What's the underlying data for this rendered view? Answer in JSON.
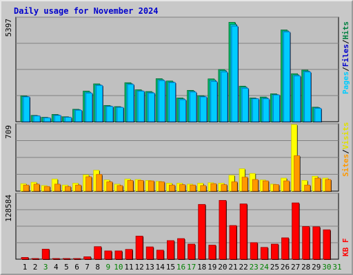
{
  "title": "Daily usage for November 2024",
  "colors": {
    "pages": "#00ccff",
    "pages_dark": "#0066cc",
    "files": "#00cccc",
    "files_dark": "#006666",
    "hits": "#00cc66",
    "hits_dark": "#006633",
    "visits": "#ffff00",
    "visits_dark": "#cccc00",
    "sites": "#ff9900",
    "sites_dark": "#cc6600",
    "kbytes": "#ff0000",
    "kbytes_dark": "#990000",
    "panel_bg": "#c0c0c0",
    "grid": "#808080"
  },
  "chart_data": [
    {
      "type": "bar",
      "title": "Daily usage for November 2024",
      "ymax_label": "5397",
      "ylim": [
        0,
        5397
      ],
      "legend": [
        "Pages",
        "Files",
        "Hits"
      ],
      "legend_separator": "/",
      "categories": [
        "1",
        "2",
        "3",
        "4",
        "5",
        "6",
        "7",
        "8",
        "9",
        "10",
        "11",
        "12",
        "13",
        "14",
        "15",
        "16",
        "17",
        "18",
        "19",
        "20",
        "21",
        "22",
        "23",
        "24",
        "25",
        "26",
        "27",
        "28",
        "29",
        "30",
        "31"
      ],
      "weekend_days": [
        "3",
        "9",
        "10",
        "16",
        "17",
        "23",
        "24",
        "30",
        "31"
      ],
      "series": [
        {
          "name": "Hits",
          "values": [
            1350,
            330,
            230,
            380,
            260,
            650,
            1600,
            1980,
            850,
            790,
            2040,
            1670,
            1580,
            2250,
            2130,
            1240,
            1640,
            1360,
            2240,
            2730,
            5200,
            1860,
            1240,
            1290,
            1460,
            4800,
            2510,
            2700,
            760,
            0,
            0
          ]
        },
        {
          "name": "Files",
          "values": [
            1320,
            310,
            210,
            350,
            240,
            630,
            1550,
            1930,
            820,
            760,
            1990,
            1620,
            1540,
            2200,
            2080,
            1200,
            1600,
            1330,
            2180,
            2680,
            5100,
            1810,
            1210,
            1250,
            1420,
            4750,
            2450,
            2650,
            740,
            0,
            0
          ]
        },
        {
          "name": "Pages",
          "values": [
            1300,
            300,
            200,
            330,
            230,
            600,
            1500,
            1900,
            800,
            750,
            1950,
            1600,
            1500,
            2150,
            2050,
            1150,
            1550,
            1300,
            2100,
            2600,
            5000,
            1750,
            1200,
            1200,
            1400,
            4700,
            2400,
            2600,
            700,
            0,
            0
          ]
        }
      ]
    },
    {
      "type": "bar",
      "ymax_label": "709",
      "ylim": [
        0,
        709
      ],
      "legend": [
        "Sites",
        "Visits"
      ],
      "legend_separator": "/",
      "categories": [
        "1",
        "2",
        "3",
        "4",
        "5",
        "6",
        "7",
        "8",
        "9",
        "10",
        "11",
        "12",
        "13",
        "14",
        "15",
        "16",
        "17",
        "18",
        "19",
        "20",
        "21",
        "22",
        "23",
        "24",
        "25",
        "26",
        "27",
        "28",
        "29",
        "30",
        "31"
      ],
      "series": [
        {
          "name": "Visits",
          "values": [
            80,
            95,
            60,
            130,
            65,
            85,
            175,
            225,
            120,
            75,
            130,
            125,
            115,
            105,
            85,
            85,
            75,
            85,
            90,
            85,
            170,
            240,
            190,
            120,
            75,
            140,
            715,
            115,
            160,
            140,
            0
          ]
        },
        {
          "name": "Sites",
          "values": [
            65,
            75,
            50,
            75,
            50,
            65,
            155,
            180,
            100,
            60,
            115,
            115,
            110,
            100,
            65,
            70,
            65,
            60,
            80,
            70,
            100,
            150,
            125,
            110,
            70,
            110,
            380,
            65,
            140,
            125,
            0
          ]
        }
      ]
    },
    {
      "type": "bar",
      "ymax_label": "128584",
      "ylim": [
        0,
        128584
      ],
      "legend": [
        "KB F"
      ],
      "categories": [
        "1",
        "2",
        "3",
        "4",
        "5",
        "6",
        "7",
        "8",
        "9",
        "10",
        "11",
        "12",
        "13",
        "14",
        "15",
        "16",
        "17",
        "18",
        "19",
        "20",
        "21",
        "22",
        "23",
        "24",
        "25",
        "26",
        "27",
        "28",
        "29",
        "30",
        "31"
      ],
      "series": [
        {
          "name": "KB F",
          "values": [
            3500,
            700,
            20000,
            700,
            700,
            700,
            4800,
            25000,
            16500,
            16500,
            19500,
            46000,
            24500,
            18000,
            37000,
            41000,
            30000,
            109000,
            28000,
            117000,
            67000,
            110000,
            33000,
            23500,
            30000,
            42500,
            112000,
            65000,
            64500,
            58500,
            0
          ]
        }
      ]
    }
  ]
}
